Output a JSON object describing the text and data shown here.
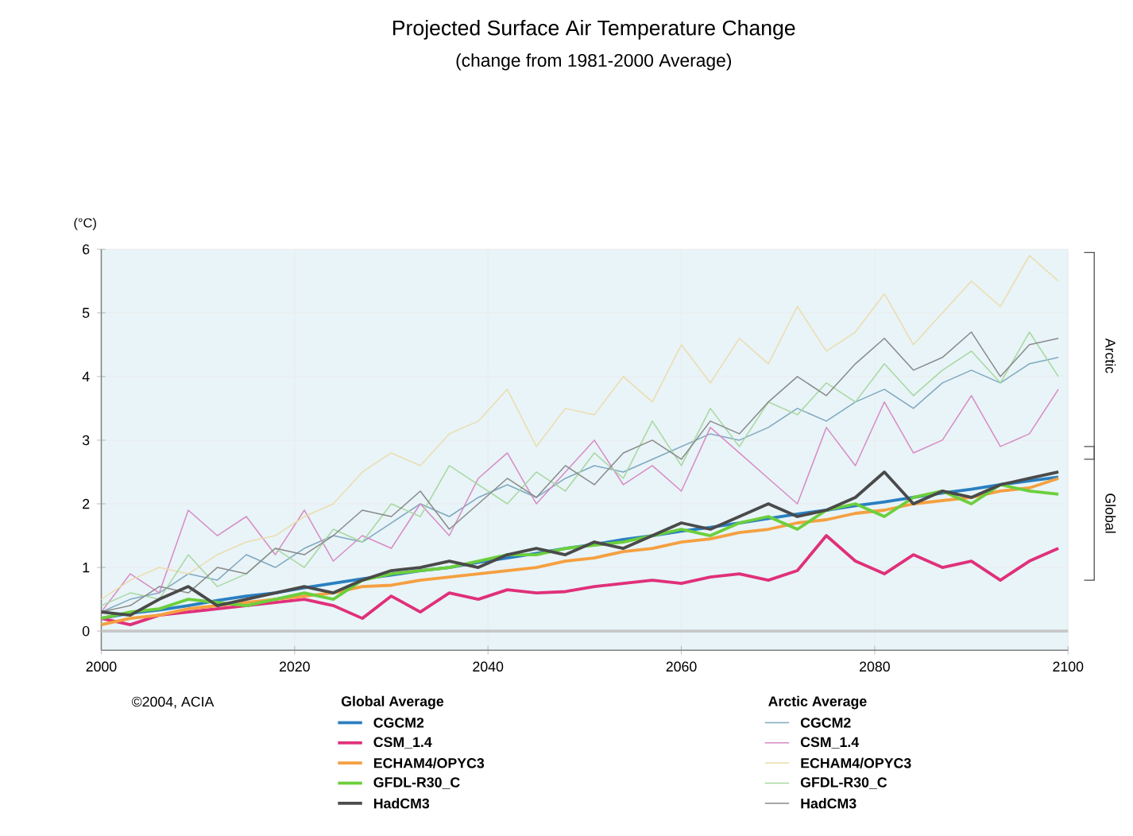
{
  "chart_data": {
    "type": "line",
    "title": "Projected Surface Air Temperature Change",
    "subtitle": "(change from 1981-2000 Average)",
    "ylabel": "(°C)",
    "x": [
      2000,
      2003,
      2006,
      2009,
      2012,
      2015,
      2018,
      2021,
      2024,
      2027,
      2030,
      2033,
      2036,
      2039,
      2042,
      2045,
      2048,
      2051,
      2054,
      2057,
      2060,
      2063,
      2066,
      2069,
      2072,
      2075,
      2078,
      2081,
      2084,
      2087,
      2090,
      2093,
      2096,
      2099
    ],
    "series": [
      {
        "name": "CGCM2",
        "color": "#2a7fc1",
        "values": [
          0.2,
          0.28,
          0.33,
          0.4,
          0.48,
          0.55,
          0.6,
          0.68,
          0.75,
          0.82,
          0.88,
          0.95,
          1.0,
          1.08,
          1.15,
          1.22,
          1.3,
          1.36,
          1.44,
          1.5,
          1.57,
          1.63,
          1.7,
          1.77,
          1.84,
          1.9,
          1.97,
          2.03,
          2.1,
          2.17,
          2.23,
          2.3,
          2.36,
          2.42
        ]
      },
      {
        "name": "CSM_1.4",
        "color": "#e0307a",
        "values": [
          0.2,
          0.1,
          0.25,
          0.3,
          0.35,
          0.4,
          0.45,
          0.5,
          0.4,
          0.2,
          0.55,
          0.3,
          0.6,
          0.5,
          0.65,
          0.6,
          0.62,
          0.7,
          0.75,
          0.8,
          0.75,
          0.85,
          0.9,
          0.8,
          0.95,
          1.5,
          1.1,
          0.9,
          1.2,
          1.0,
          1.1,
          0.8,
          1.1,
          1.3
        ]
      },
      {
        "name": "ECHAM4/OPYC3",
        "color": "#f5a040",
        "values": [
          0.1,
          0.2,
          0.25,
          0.35,
          0.4,
          0.45,
          0.5,
          0.55,
          0.6,
          0.7,
          0.72,
          0.8,
          0.85,
          0.9,
          0.95,
          1.0,
          1.1,
          1.15,
          1.25,
          1.3,
          1.4,
          1.45,
          1.55,
          1.6,
          1.7,
          1.75,
          1.85,
          1.9,
          2.0,
          2.05,
          2.1,
          2.2,
          2.25,
          2.4
        ]
      },
      {
        "name": "GFDL-R30_C",
        "color": "#6ccf3c",
        "values": [
          0.2,
          0.3,
          0.35,
          0.5,
          0.45,
          0.4,
          0.5,
          0.6,
          0.5,
          0.8,
          0.9,
          0.95,
          1.0,
          1.1,
          1.2,
          1.2,
          1.3,
          1.35,
          1.4,
          1.5,
          1.6,
          1.5,
          1.7,
          1.8,
          1.6,
          1.9,
          2.0,
          1.8,
          2.1,
          2.2,
          2.0,
          2.3,
          2.2,
          2.15
        ]
      },
      {
        "name": "HadCM3",
        "color": "#4a4a4a",
        "values": [
          0.3,
          0.25,
          0.5,
          0.7,
          0.4,
          0.5,
          0.6,
          0.7,
          0.6,
          0.8,
          0.95,
          1.0,
          1.1,
          1.0,
          1.2,
          1.3,
          1.2,
          1.4,
          1.3,
          1.5,
          1.7,
          1.6,
          1.8,
          2.0,
          1.8,
          1.9,
          2.1,
          2.5,
          2.0,
          2.2,
          2.1,
          2.3,
          2.4,
          2.5
        ]
      },
      {
        "name": "CGCM2",
        "color": "#7fa8c0",
        "values": [
          0.3,
          0.5,
          0.6,
          0.9,
          0.8,
          1.2,
          1.0,
          1.3,
          1.5,
          1.4,
          1.7,
          2.0,
          1.8,
          2.1,
          2.3,
          2.1,
          2.4,
          2.6,
          2.5,
          2.7,
          2.9,
          3.1,
          3.0,
          3.2,
          3.5,
          3.3,
          3.6,
          3.8,
          3.5,
          3.9,
          4.1,
          3.9,
          4.2,
          4.3
        ]
      },
      {
        "name": "CSM_1.4",
        "color": "#d98bc4",
        "values": [
          0.3,
          0.9,
          0.6,
          1.9,
          1.5,
          1.8,
          1.2,
          1.9,
          1.1,
          1.5,
          1.3,
          2.0,
          1.5,
          2.4,
          2.8,
          2.0,
          2.5,
          3.0,
          2.3,
          2.6,
          2.2,
          3.2,
          2.8,
          2.4,
          2.0,
          3.2,
          2.6,
          3.6,
          2.8,
          3.0,
          3.7,
          2.9,
          3.1,
          3.8
        ]
      },
      {
        "name": "ECHAM4/OPYC3",
        "color": "#ecdcac",
        "values": [
          0.5,
          0.8,
          1.0,
          0.9,
          1.2,
          1.4,
          1.5,
          1.8,
          2.0,
          2.5,
          2.8,
          2.6,
          3.1,
          3.3,
          3.8,
          2.9,
          3.5,
          3.4,
          4.0,
          3.6,
          4.5,
          3.9,
          4.6,
          4.2,
          5.1,
          4.4,
          4.7,
          5.3,
          4.5,
          5.0,
          5.5,
          5.1,
          5.9,
          5.5
        ]
      },
      {
        "name": "GFDL-R30_C",
        "color": "#a8d8a0",
        "values": [
          0.4,
          0.6,
          0.5,
          1.2,
          0.7,
          0.9,
          1.3,
          1.0,
          1.6,
          1.4,
          2.0,
          1.8,
          2.6,
          2.3,
          2.0,
          2.5,
          2.2,
          2.8,
          2.4,
          3.3,
          2.6,
          3.5,
          2.9,
          3.6,
          3.4,
          3.9,
          3.6,
          4.2,
          3.7,
          4.1,
          4.4,
          3.9,
          4.7,
          4.0
        ]
      },
      {
        "name": "HadCM3",
        "color": "#8a8a8a",
        "values": [
          0.3,
          0.4,
          0.7,
          0.6,
          1.0,
          0.9,
          1.3,
          1.2,
          1.5,
          1.9,
          1.8,
          2.2,
          1.6,
          2.0,
          2.4,
          2.1,
          2.6,
          2.3,
          2.8,
          3.0,
          2.7,
          3.3,
          3.1,
          3.6,
          4.0,
          3.7,
          4.2,
          4.6,
          4.1,
          4.3,
          4.7,
          4.0,
          4.5,
          4.6
        ]
      }
    ],
    "xlim": [
      2000,
      2100
    ],
    "xticks": [
      2000,
      2020,
      2040,
      2060,
      2080,
      2100
    ],
    "ylim": [
      -0.3,
      6
    ],
    "yticks": [
      0,
      1,
      2,
      3,
      4,
      5,
      6
    ],
    "grid": true,
    "legend": "bottom",
    "marker": "none",
    "line_style": "solid",
    "ref_lines": [
      {
        "axis": "y",
        "value": 0,
        "color": "#c8c8c8"
      }
    ],
    "annotations": [
      "©2004, ACIA",
      "Global Average",
      "Arctic Average",
      "Arctic",
      "Global"
    ]
  }
}
